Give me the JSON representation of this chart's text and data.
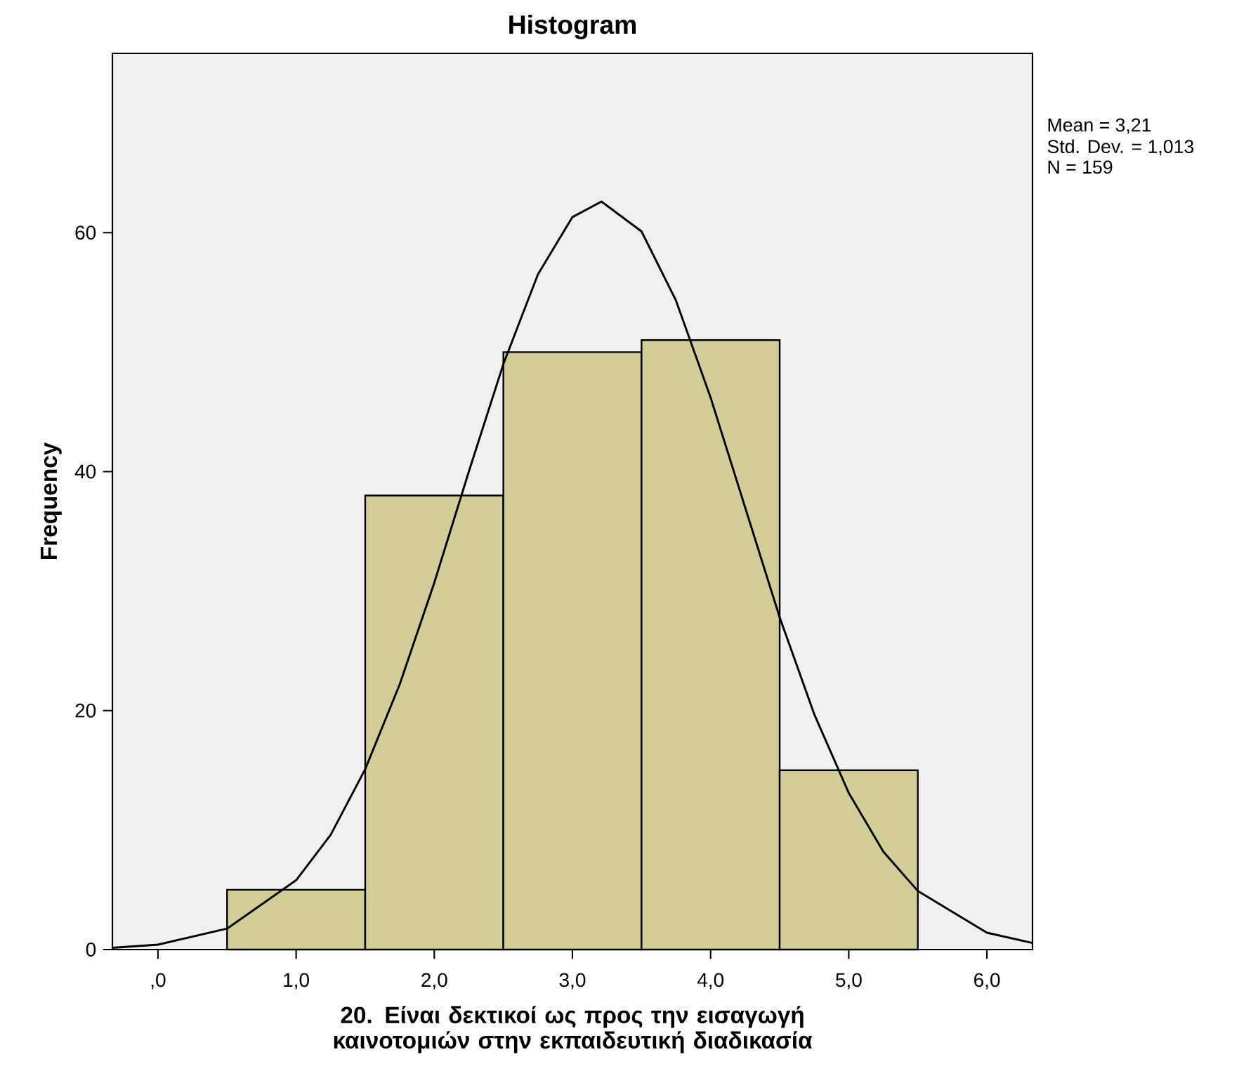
{
  "chart_data": {
    "type": "histogram",
    "title": "Histogram",
    "xlabel": "20. Είναι δεκτικοί ως προς την εισαγωγή καινοτομιών στην εκπαιδευτική διαδικασία",
    "ylabel": "Frequency",
    "bins": [
      0.5,
      1.5,
      2.5,
      3.5,
      4.5,
      5.5
    ],
    "values": [
      5,
      38,
      50,
      51,
      15
    ],
    "color": "#d3ce97",
    "series": [
      {
        "type": "line",
        "color": "#000000",
        "x": [
          -0.33,
          0,
          0.5,
          1.0,
          1.25,
          1.5,
          1.75,
          2.0,
          2.25,
          2.5,
          2.75,
          3.0,
          3.21,
          3.5,
          3.75,
          4.0,
          4.25,
          4.5,
          4.75,
          5.0,
          5.25,
          5.5,
          6.0,
          6.33
        ],
        "values": [
          0.14,
          0.41,
          1.75,
          5.8,
          9.6,
          15.1,
          22.2,
          30.7,
          40.0,
          49.0,
          56.5,
          61.3,
          62.6,
          60.1,
          54.3,
          46.2,
          37.0,
          27.8,
          19.7,
          13.1,
          8.2,
          4.9,
          1.41,
          0.55
        ]
      }
    ],
    "xlim": [
      -0.33,
      6.33
    ],
    "ylim": [
      0,
      75
    ],
    "xticks": [
      {
        "value": 0,
        "label": ",0"
      },
      {
        "value": 1,
        "label": "1,0"
      },
      {
        "value": 2,
        "label": "2,0"
      },
      {
        "value": 3,
        "label": "3,0"
      },
      {
        "value": 4,
        "label": "4,0"
      },
      {
        "value": 5,
        "label": "5,0"
      },
      {
        "value": 6,
        "label": "6,0"
      }
    ],
    "yticks": [
      0,
      20,
      40,
      60
    ],
    "annotations": [
      "Mean = 3,21",
      "Std. Dev. = 1,013",
      "N = 159"
    ]
  }
}
